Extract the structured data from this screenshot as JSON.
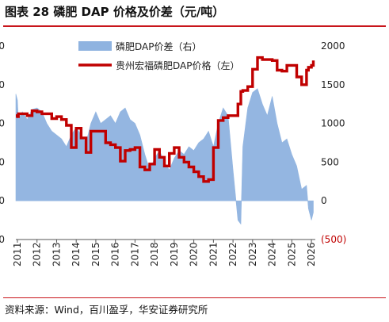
{
  "header": {
    "title": "图表 28 磷肥 DAP 价格及价差（元/吨）"
  },
  "footer": {
    "source": "资料来源：Wind，百川盈孚，华安证券研究所"
  },
  "colors": {
    "price_line": "#c00000",
    "spread_area": "#8fb3e0",
    "axis": "#555555",
    "negative_tick": "#c00000",
    "title_rule": "#c8151b"
  },
  "chart_data": {
    "type": "area",
    "legend_position": "top-center",
    "grid": false,
    "x": [
      2010.92,
      2011.0,
      2011.05,
      2011.25,
      2011.5,
      2011.75,
      2012.0,
      2012.25,
      2012.5,
      2012.75,
      2013.0,
      2013.25,
      2013.5,
      2013.75,
      2014.0,
      2014.25,
      2014.5,
      2014.75,
      2015.0,
      2015.25,
      2015.5,
      2015.75,
      2016.0,
      2016.25,
      2016.5,
      2016.75,
      2017.0,
      2017.25,
      2017.5,
      2017.75,
      2018.0,
      2018.25,
      2018.5,
      2018.75,
      2019.0,
      2019.25,
      2019.5,
      2019.75,
      2020.0,
      2020.25,
      2020.5,
      2020.75,
      2021.0,
      2021.25,
      2021.5,
      2021.75,
      2022.0,
      2022.25,
      2022.4,
      2022.5,
      2022.75,
      2023.0,
      2023.25,
      2023.5,
      2023.75,
      2024.0,
      2024.25,
      2024.5,
      2024.75,
      2025.0,
      2025.25,
      2025.5,
      2025.75,
      2025.85,
      2026.0,
      2026.1
    ],
    "series": [
      {
        "name": "磷肥DAP价差（右）",
        "axis": "right",
        "render": "area",
        "values": [
          1380,
          1300,
          1050,
          1150,
          1050,
          1180,
          1200,
          1150,
          1000,
          900,
          850,
          800,
          700,
          850,
          950,
          850,
          750,
          1000,
          1150,
          1000,
          1050,
          1100,
          1000,
          1150,
          1200,
          1050,
          1000,
          850,
          600,
          400,
          550,
          650,
          500,
          400,
          550,
          650,
          600,
          700,
          650,
          750,
          800,
          900,
          700,
          1000,
          1200,
          1100,
          400,
          -250,
          -300,
          700,
          1200,
          1400,
          1450,
          1250,
          1100,
          1350,
          1000,
          750,
          800,
          600,
          450,
          150,
          200,
          -100,
          -250,
          -150
        ]
      },
      {
        "name": "贵州宏福磷肥DAP价格（左）",
        "axis": "left",
        "render": "line",
        "values": [
          2280,
          2270,
          2300,
          2300,
          2280,
          2330,
          2320,
          2300,
          2300,
          2250,
          2270,
          2240,
          2180,
          1950,
          2150,
          2050,
          1900,
          2120,
          2120,
          2120,
          2000,
          1980,
          1950,
          1810,
          1920,
          1930,
          1950,
          1750,
          1720,
          1780,
          1930,
          1850,
          1760,
          1890,
          1950,
          1850,
          1800,
          1750,
          1700,
          1650,
          1600,
          1620,
          1950,
          2230,
          2260,
          2280,
          2280,
          2400,
          2530,
          2540,
          2580,
          2760,
          2880,
          2860,
          2860,
          2850,
          2750,
          2740,
          2800,
          2800,
          2680,
          2600,
          2750,
          2780,
          2800,
          2850
        ]
      }
    ],
    "x_ticks": [
      "2011",
      "2012",
      "2013",
      "2014",
      "2015",
      "2016",
      "2017",
      "2018",
      "2019",
      "2020",
      "2021",
      "2022",
      "2023",
      "2024",
      "2025",
      "2026"
    ],
    "xlim": [
      2010.92,
      2026.2
    ],
    "y_left": {
      "ylim": [
        1000,
        3000
      ],
      "ticks": [
        "0",
        "0",
        "0",
        "0",
        "0",
        "0"
      ]
    },
    "y_right": {
      "ylim": [
        -500,
        2000
      ],
      "ticks": [
        "2000",
        "1500",
        "1000",
        "500",
        "0",
        "(500)"
      ]
    }
  }
}
